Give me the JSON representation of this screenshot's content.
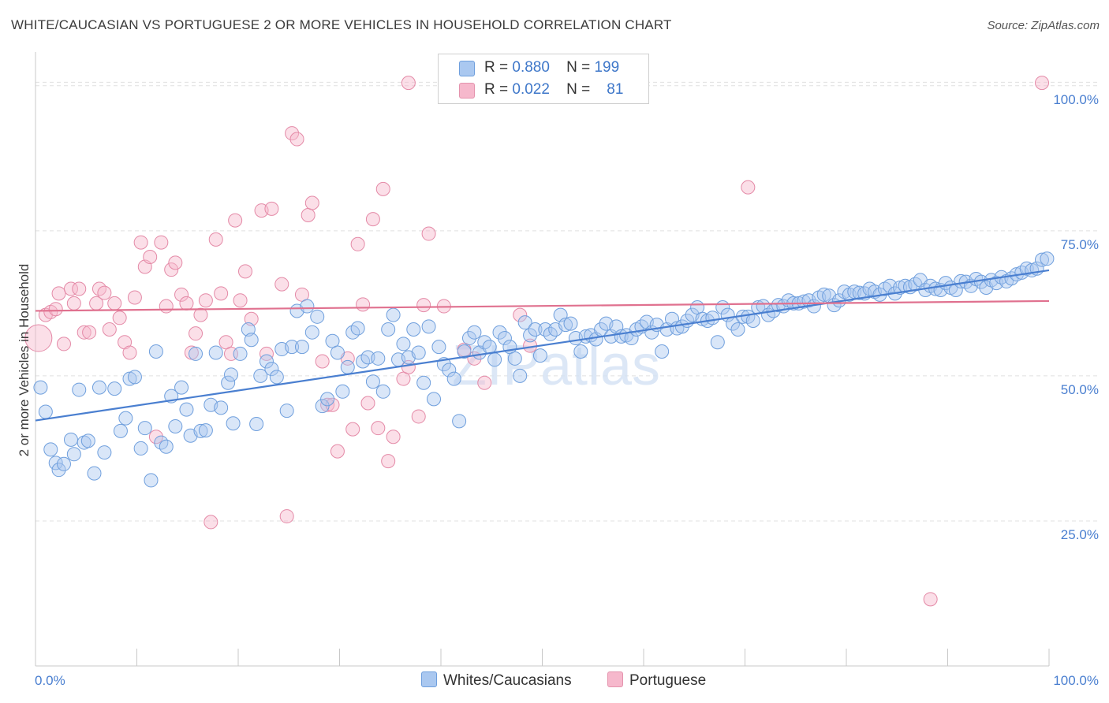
{
  "title": "WHITE/CAUCASIAN VS PORTUGUESE 2 OR MORE VEHICLES IN HOUSEHOLD CORRELATION CHART",
  "source": "Source: ZipAtlas.com",
  "watermark": "ZIPatlas",
  "legend": {
    "rows": [
      {
        "r_label": "R =",
        "r_value": "0.880",
        "n_label": "N =",
        "n_value": "199",
        "color": "#aac8f0"
      },
      {
        "r_label": "R =",
        "r_value": "0.022",
        "n_label": "N =",
        "n_value": "81",
        "color": "#f6b8cc"
      }
    ]
  },
  "bottom_legend": [
    {
      "label": "Whites/Caucasians",
      "color": "#aac8f0"
    },
    {
      "label": "Portuguese",
      "color": "#f6b8cc"
    }
  ],
  "chart_data": {
    "type": "scatter",
    "title": "WHITE/CAUCASIAN VS PORTUGUESE 2 OR MORE VEHICLES IN HOUSEHOLD CORRELATION CHART",
    "xlabel": "",
    "ylabel": "2 or more Vehicles in Household",
    "xlim": [
      0,
      100
    ],
    "ylim": [
      0,
      105
    ],
    "x_tick_labels": [
      "0.0%",
      "100.0%"
    ],
    "y_ticks": [
      25,
      50,
      75,
      100
    ],
    "y_tick_labels": [
      "25.0%",
      "50.0%",
      "75.0%",
      "100.0%"
    ],
    "grid": true,
    "legend_position": "top-center",
    "series": [
      {
        "name": "Whites/Caucasians",
        "color": "#4a7fd0",
        "fill": "#aac8f0",
        "trend": {
          "x": [
            0,
            100
          ],
          "y": [
            42.3,
            68.2
          ]
        },
        "points": [
          [
            0.5,
            48
          ],
          [
            1,
            43.8
          ],
          [
            1.5,
            37.3
          ],
          [
            2,
            35
          ],
          [
            2.3,
            33.8
          ],
          [
            2.8,
            34.8
          ],
          [
            3.5,
            39
          ],
          [
            3.8,
            36.5
          ],
          [
            4.3,
            47.6
          ],
          [
            4.8,
            38.5
          ],
          [
            5.2,
            38.8
          ],
          [
            5.8,
            33.2
          ],
          [
            6.3,
            48
          ],
          [
            6.8,
            36.8
          ],
          [
            7.8,
            47.8
          ],
          [
            8.4,
            40.5
          ],
          [
            8.9,
            42.7
          ],
          [
            9.3,
            49.5
          ],
          [
            9.8,
            49.8
          ],
          [
            10.4,
            37.5
          ],
          [
            10.8,
            41
          ],
          [
            11.4,
            32
          ],
          [
            11.9,
            54.2
          ],
          [
            12.4,
            38.5
          ],
          [
            12.9,
            37.8
          ],
          [
            13.4,
            46.5
          ],
          [
            13.8,
            41.3
          ],
          [
            14.4,
            48
          ],
          [
            14.9,
            44.2
          ],
          [
            15.3,
            39.7
          ],
          [
            15.8,
            53.8
          ],
          [
            16.3,
            40.5
          ],
          [
            16.8,
            40.6
          ],
          [
            17.3,
            45
          ],
          [
            17.8,
            54
          ],
          [
            18.3,
            44.5
          ],
          [
            19,
            48.8
          ],
          [
            19.3,
            50.2
          ],
          [
            19.5,
            41.8
          ],
          [
            20.2,
            53.8
          ],
          [
            21,
            58
          ],
          [
            21.3,
            56.2
          ],
          [
            21.8,
            41.7
          ],
          [
            22.2,
            50
          ],
          [
            22.8,
            52.5
          ],
          [
            23.3,
            51.2
          ],
          [
            23.8,
            49.8
          ],
          [
            24.3,
            54.6
          ],
          [
            24.8,
            44
          ],
          [
            25.3,
            55
          ],
          [
            25.8,
            61.2
          ],
          [
            26.3,
            55
          ],
          [
            26.8,
            62
          ],
          [
            27.3,
            57.5
          ],
          [
            27.8,
            60.2
          ],
          [
            28.3,
            44.8
          ],
          [
            28.8,
            46
          ],
          [
            29.3,
            56
          ],
          [
            29.8,
            54
          ],
          [
            30.3,
            47.3
          ],
          [
            30.8,
            51.5
          ],
          [
            31.3,
            57.5
          ],
          [
            31.8,
            58.2
          ],
          [
            32.3,
            52.5
          ],
          [
            32.8,
            53.2
          ],
          [
            33.3,
            49
          ],
          [
            33.8,
            53
          ],
          [
            34.3,
            47.3
          ],
          [
            34.8,
            58
          ],
          [
            35.3,
            60.5
          ],
          [
            35.8,
            52.8
          ],
          [
            36.3,
            55.5
          ],
          [
            36.8,
            53.2
          ],
          [
            37.3,
            58
          ],
          [
            37.8,
            54
          ],
          [
            38.3,
            48.8
          ],
          [
            38.8,
            58.5
          ],
          [
            39.3,
            46
          ],
          [
            39.8,
            55
          ],
          [
            40.3,
            52
          ],
          [
            40.8,
            51
          ],
          [
            41.3,
            49.5
          ],
          [
            41.8,
            42.2
          ],
          [
            42.3,
            54.2
          ],
          [
            42.8,
            56.5
          ],
          [
            43.3,
            57.5
          ],
          [
            43.8,
            54
          ],
          [
            44.3,
            55.8
          ],
          [
            44.8,
            55
          ],
          [
            45.3,
            52.8
          ],
          [
            45.8,
            57.5
          ],
          [
            46.3,
            56.5
          ],
          [
            46.8,
            55
          ],
          [
            47.3,
            53
          ],
          [
            47.8,
            50
          ],
          [
            48.3,
            59.2
          ],
          [
            48.8,
            57
          ],
          [
            49.3,
            58
          ],
          [
            49.8,
            53.5
          ],
          [
            50.3,
            58
          ],
          [
            50.8,
            57.2
          ],
          [
            51.3,
            58
          ],
          [
            51.8,
            60.5
          ],
          [
            52.3,
            58.8
          ],
          [
            52.8,
            59
          ],
          [
            53.3,
            56.5
          ],
          [
            53.8,
            54.2
          ],
          [
            54.3,
            56.8
          ],
          [
            54.8,
            57
          ],
          [
            55.3,
            56.3
          ],
          [
            55.8,
            58
          ],
          [
            56.3,
            59
          ],
          [
            56.8,
            56.8
          ],
          [
            57.3,
            58.5
          ],
          [
            57.8,
            56.8
          ],
          [
            58.3,
            57
          ],
          [
            58.8,
            56.5
          ],
          [
            59.3,
            58
          ],
          [
            59.8,
            58.5
          ],
          [
            60.3,
            59.3
          ],
          [
            60.8,
            57.5
          ],
          [
            61.3,
            58.8
          ],
          [
            61.8,
            54.2
          ],
          [
            62.3,
            58
          ],
          [
            62.8,
            59.8
          ],
          [
            63.3,
            58.2
          ],
          [
            63.8,
            58.5
          ],
          [
            64.3,
            59.5
          ],
          [
            64.8,
            60.5
          ],
          [
            65.3,
            61.8
          ],
          [
            65.8,
            59.8
          ],
          [
            66.3,
            59.5
          ],
          [
            66.8,
            60
          ],
          [
            67.3,
            55.8
          ],
          [
            67.8,
            61.8
          ],
          [
            68.3,
            60.5
          ],
          [
            68.8,
            59
          ],
          [
            69.3,
            58
          ],
          [
            69.8,
            60.2
          ],
          [
            70.3,
            60.2
          ],
          [
            70.8,
            59.5
          ],
          [
            71.3,
            61.8
          ],
          [
            71.8,
            62
          ],
          [
            72.3,
            60.5
          ],
          [
            72.8,
            61.2
          ],
          [
            73.3,
            62.2
          ],
          [
            73.8,
            62
          ],
          [
            74.3,
            63
          ],
          [
            74.8,
            62.5
          ],
          [
            75.3,
            62.5
          ],
          [
            75.8,
            62.8
          ],
          [
            76.3,
            63
          ],
          [
            76.8,
            62
          ],
          [
            77.3,
            63.5
          ],
          [
            77.8,
            64
          ],
          [
            78.3,
            63.8
          ],
          [
            78.8,
            62.2
          ],
          [
            79.3,
            63
          ],
          [
            79.8,
            64.5
          ],
          [
            80.3,
            64
          ],
          [
            80.8,
            64.5
          ],
          [
            81.3,
            64.3
          ],
          [
            81.8,
            64.2
          ],
          [
            82.3,
            65
          ],
          [
            82.8,
            64.5
          ],
          [
            83.3,
            64
          ],
          [
            83.8,
            65
          ],
          [
            84.3,
            65.5
          ],
          [
            84.8,
            64.2
          ],
          [
            85.3,
            65.2
          ],
          [
            85.8,
            65.5
          ],
          [
            86.3,
            65.3
          ],
          [
            86.8,
            65.8
          ],
          [
            87.3,
            66.5
          ],
          [
            87.8,
            64.8
          ],
          [
            88.3,
            65.5
          ],
          [
            88.8,
            65
          ],
          [
            89.3,
            64.8
          ],
          [
            89.8,
            66
          ],
          [
            90.3,
            65.2
          ],
          [
            90.8,
            64.8
          ],
          [
            91.3,
            66.3
          ],
          [
            91.8,
            66.2
          ],
          [
            92.3,
            65.5
          ],
          [
            92.8,
            66.7
          ],
          [
            93.3,
            66.2
          ],
          [
            93.8,
            65.2
          ],
          [
            94.3,
            66.5
          ],
          [
            94.8,
            66
          ],
          [
            95.3,
            67
          ],
          [
            95.8,
            66.3
          ],
          [
            96.3,
            66.8
          ],
          [
            96.8,
            67.5
          ],
          [
            97.3,
            67.8
          ],
          [
            97.8,
            68.5
          ],
          [
            98.3,
            68.2
          ],
          [
            98.8,
            68.5
          ],
          [
            99.3,
            70
          ],
          [
            99.8,
            70.2
          ]
        ]
      },
      {
        "name": "Portuguese",
        "color": "#e0718f",
        "fill": "#f6b8cc",
        "trend": {
          "x": [
            0,
            100
          ],
          "y": [
            61.2,
            62.9
          ]
        },
        "points": [
          [
            0.3,
            56.5,
            "large"
          ],
          [
            1,
            60.5
          ],
          [
            1.5,
            61
          ],
          [
            2,
            61.5
          ],
          [
            2.3,
            64.2
          ],
          [
            2.8,
            55.5
          ],
          [
            3.5,
            65
          ],
          [
            3.8,
            62.5
          ],
          [
            4.3,
            65
          ],
          [
            4.8,
            57.5
          ],
          [
            5.3,
            57.5
          ],
          [
            6,
            62.5
          ],
          [
            6.3,
            65
          ],
          [
            6.8,
            64.3
          ],
          [
            7.3,
            58
          ],
          [
            7.8,
            62.5
          ],
          [
            8.3,
            60
          ],
          [
            8.8,
            55.8
          ],
          [
            9.3,
            54
          ],
          [
            9.8,
            63.5
          ],
          [
            10.4,
            73
          ],
          [
            10.8,
            68.8
          ],
          [
            11.3,
            70.5
          ],
          [
            11.9,
            39.5
          ],
          [
            12.4,
            73
          ],
          [
            12.9,
            62
          ],
          [
            13.4,
            68.3
          ],
          [
            13.8,
            69.5
          ],
          [
            14.4,
            64
          ],
          [
            14.9,
            62.5
          ],
          [
            15.4,
            54
          ],
          [
            15.8,
            57.3
          ],
          [
            16.3,
            60.5
          ],
          [
            16.8,
            63
          ],
          [
            17.3,
            24.8
          ],
          [
            17.8,
            73.5
          ],
          [
            18.3,
            64.2
          ],
          [
            18.8,
            55.8
          ],
          [
            19.3,
            53.8
          ],
          [
            19.7,
            76.8
          ],
          [
            20.2,
            63
          ],
          [
            20.7,
            68
          ],
          [
            21.3,
            59.8
          ],
          [
            22.3,
            78.5
          ],
          [
            22.8,
            53.8
          ],
          [
            23.3,
            78.8
          ],
          [
            24.3,
            65.8
          ],
          [
            24.8,
            25.8
          ],
          [
            25.3,
            91.8
          ],
          [
            25.8,
            90.8
          ],
          [
            26.3,
            64
          ],
          [
            26.9,
            77.7
          ],
          [
            27.3,
            79.8
          ],
          [
            28.3,
            52.5
          ],
          [
            28.8,
            45
          ],
          [
            29.3,
            45
          ],
          [
            29.8,
            37
          ],
          [
            30.8,
            53
          ],
          [
            31.3,
            40.8
          ],
          [
            31.8,
            72.7
          ],
          [
            32.3,
            62.3
          ],
          [
            32.8,
            45.3
          ],
          [
            33.3,
            77
          ],
          [
            33.8,
            41
          ],
          [
            34.3,
            82.2
          ],
          [
            34.8,
            35.3
          ],
          [
            35.3,
            39.5
          ],
          [
            36.3,
            49.5
          ],
          [
            36.8,
            51.5
          ],
          [
            37.8,
            43
          ],
          [
            38.3,
            62.2
          ],
          [
            38.8,
            74.5
          ],
          [
            40.3,
            62
          ],
          [
            42.3,
            54.5
          ],
          [
            43.3,
            53
          ],
          [
            44.3,
            48.8
          ],
          [
            47.8,
            60.5
          ],
          [
            48.8,
            55.2
          ],
          [
            70.3,
            82.5
          ],
          [
            88.3,
            11.5
          ],
          [
            99.3,
            100.5
          ],
          [
            36.8,
            100.5
          ]
        ]
      }
    ]
  }
}
